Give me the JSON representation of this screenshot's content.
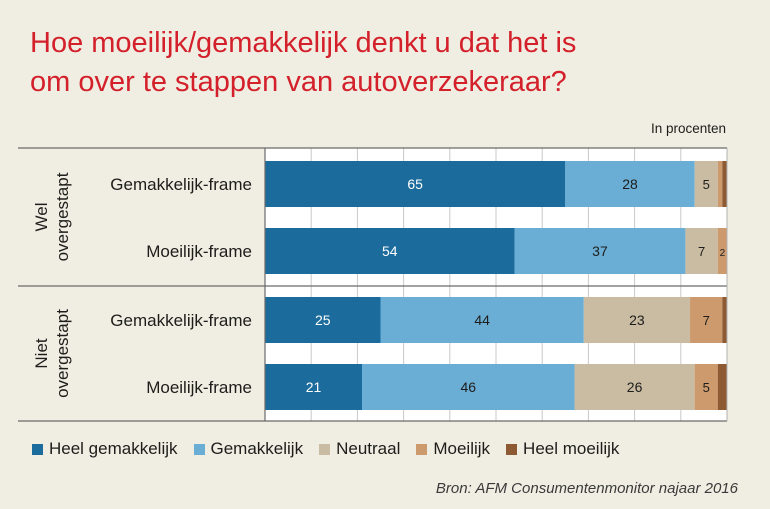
{
  "title_lines": [
    "Hoe moeilijk/gemakkelijk denkt u dat het is",
    "om over te stappen van autoverzekeraar?"
  ],
  "unit_label": "In procenten",
  "source": "Bron: AFM Consumentenmonitor najaar 2016",
  "chart_data": {
    "type": "bar",
    "orientation": "horizontal",
    "stacked": true,
    "title": "Hoe moeilijk/gemakkelijk denkt u dat het is om over te stappen van autoverzekeraar?",
    "groups": [
      {
        "label_lines": [
          "Wel",
          "overgestapt"
        ],
        "rows": [
          {
            "label": "Gemakkelijk-frame",
            "values": [
              65,
              28,
              5,
              1,
              1
            ],
            "labels": [
              "65",
              "28",
              "5",
              "",
              ""
            ]
          },
          {
            "label": "Moeilijk-frame",
            "values": [
              54,
              37,
              7,
              2,
              0
            ],
            "labels": [
              "54",
              "37",
              "7",
              "2",
              ""
            ]
          }
        ]
      },
      {
        "label_lines": [
          "Niet",
          "overgestapt"
        ],
        "rows": [
          {
            "label": "Gemakkelijk-frame",
            "values": [
              25,
              44,
              23,
              7,
              1
            ],
            "labels": [
              "25",
              "44",
              "23",
              "7",
              ""
            ]
          },
          {
            "label": "Moeilijk-frame",
            "values": [
              21,
              46,
              26,
              5,
              2
            ],
            "labels": [
              "21",
              "46",
              "26",
              "5",
              ""
            ]
          }
        ]
      }
    ],
    "series": [
      {
        "name": "Heel gemakkelijk",
        "color": "#1b6b9c"
      },
      {
        "name": "Gemakkelijk",
        "color": "#6aaed6"
      },
      {
        "name": "Neutraal",
        "color": "#c9bca3"
      },
      {
        "name": "Moeilijk",
        "color": "#cd9a6e"
      },
      {
        "name": "Heel moeilijk",
        "color": "#8d5a34"
      }
    ],
    "xlim": [
      0,
      100
    ],
    "grid": true,
    "legend_position": "bottom"
  }
}
